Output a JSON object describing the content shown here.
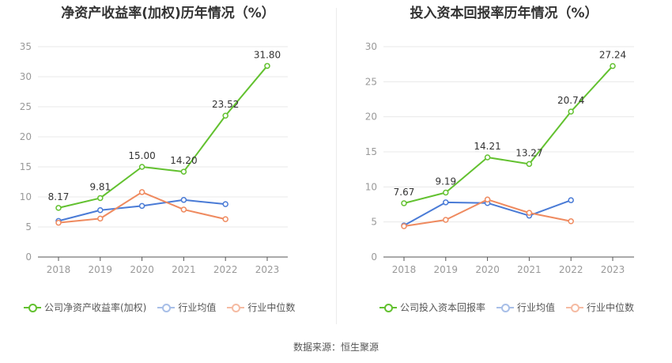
{
  "colors": {
    "company": "#62c12f",
    "average": "#4a7bd6",
    "median": "#ef8a5f",
    "grid": "#e8e8e8",
    "axis_text": "#999999"
  },
  "chart_data": [
    {
      "type": "line",
      "title": "净资产收益率(加权)历年情况（%）",
      "categories": [
        "2018",
        "2019",
        "2020",
        "2021",
        "2022",
        "2023"
      ],
      "ylim": [
        0,
        35
      ],
      "yticks": [
        "0",
        "5",
        "10",
        "15",
        "20",
        "25",
        "30",
        "35"
      ],
      "series": [
        {
          "name": "公司净资产收益率(加权)",
          "color_key": "company",
          "values": [
            8.17,
            9.81,
            15.0,
            14.2,
            23.52,
            31.8
          ],
          "labels": [
            "8.17",
            "9.81",
            "15.00",
            "14.20",
            "23.52",
            "31.80"
          ]
        },
        {
          "name": "行业均值",
          "color_key": "average",
          "values": [
            6.0,
            7.8,
            8.5,
            9.5,
            8.8,
            null
          ]
        },
        {
          "name": "行业中位数",
          "color_key": "median",
          "values": [
            5.7,
            6.4,
            10.8,
            7.9,
            6.3,
            null
          ]
        }
      ],
      "legend_position": "bottom"
    },
    {
      "type": "line",
      "title": "投入资本回报率历年情况（%）",
      "categories": [
        "2018",
        "2019",
        "2020",
        "2021",
        "2022",
        "2023"
      ],
      "ylim": [
        0,
        30
      ],
      "yticks": [
        "0",
        "5",
        "10",
        "15",
        "20",
        "25",
        "30"
      ],
      "series": [
        {
          "name": "公司投入资本回报率",
          "color_key": "company",
          "values": [
            7.67,
            9.19,
            14.21,
            13.27,
            20.74,
            27.24
          ],
          "labels": [
            "7.67",
            "9.19",
            "14.21",
            "13.27",
            "20.74",
            "27.24"
          ]
        },
        {
          "name": "行业均值",
          "color_key": "average",
          "values": [
            4.5,
            7.8,
            7.7,
            5.9,
            8.1,
            null
          ]
        },
        {
          "name": "行业中位数",
          "color_key": "median",
          "values": [
            4.4,
            5.3,
            8.2,
            6.3,
            5.1,
            null
          ]
        }
      ],
      "legend_position": "bottom"
    }
  ],
  "source_text": "数据来源：恒生聚源"
}
